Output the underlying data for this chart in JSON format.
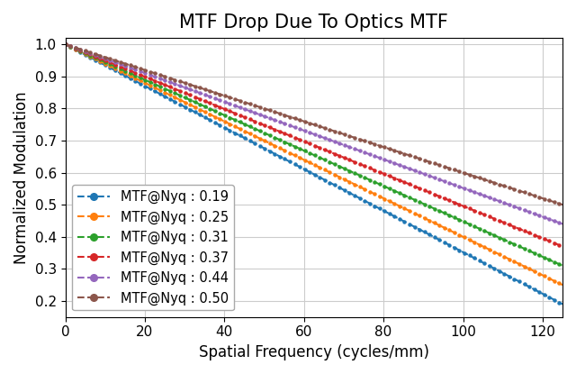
{
  "title": "MTF Drop Due To Optics MTF",
  "xlabel": "Spatial Frequency (cycles/mm)",
  "ylabel": "Normalized Modulation",
  "xlim": [
    0,
    125
  ],
  "ylim": [
    0.15,
    1.02
  ],
  "xticks": [
    0,
    20,
    40,
    60,
    80,
    100,
    120
  ],
  "yticks": [
    0.2,
    0.3,
    0.4,
    0.5,
    0.6,
    0.7,
    0.8,
    0.9,
    1.0
  ],
  "nyquist_freq": 125,
  "series": [
    {
      "label": "MTF@Nyq : 0.19",
      "mtf_nyq": 0.19,
      "color": "#1f77b4"
    },
    {
      "label": "MTF@Nyq : 0.25",
      "mtf_nyq": 0.25,
      "color": "#ff7f0e"
    },
    {
      "label": "MTF@Nyq : 0.31",
      "mtf_nyq": 0.31,
      "color": "#2ca02c"
    },
    {
      "label": "MTF@Nyq : 0.37",
      "mtf_nyq": 0.37,
      "color": "#d62728"
    },
    {
      "label": "MTF@Nyq : 0.44",
      "mtf_nyq": 0.44,
      "color": "#9467bd"
    },
    {
      "label": "MTF@Nyq : 0.50",
      "mtf_nyq": 0.5,
      "color": "#8c564b"
    }
  ],
  "grid_color": "#cccccc",
  "background_color": "#ffffff",
  "title_fontsize": 15,
  "label_fontsize": 12,
  "tick_fontsize": 11,
  "legend_fontsize": 10.5,
  "n_points": 300,
  "marker": "o",
  "markersize": 2.2,
  "linewidth": 1.5,
  "linestyle": "--"
}
